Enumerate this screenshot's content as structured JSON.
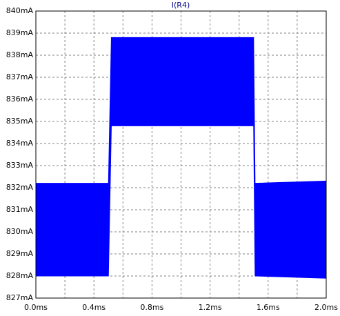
{
  "chart_data": {
    "type": "band",
    "title": "I(R4)",
    "x": [
      0,
      0.5,
      0.52,
      1.5,
      1.51,
      2.0
    ],
    "series": [
      {
        "color": "#0000ff",
        "high": [
          832.2,
          832.2,
          838.8,
          838.8,
          832.2,
          832.3
        ],
        "low": [
          828.0,
          828.0,
          834.8,
          834.8,
          828.0,
          827.9
        ]
      }
    ],
    "xlim": [
      0,
      2.0
    ],
    "xticks": [
      {
        "value": 0,
        "label": "0.0ms"
      },
      {
        "value": 0.4,
        "label": "0.4ms"
      },
      {
        "value": 0.8,
        "label": "0.8ms"
      },
      {
        "value": 1.2,
        "label": "1.2ms"
      },
      {
        "value": 1.6,
        "label": "1.6ms"
      },
      {
        "value": 2.0,
        "label": "2.0ms"
      }
    ],
    "xminor": [
      0.2,
      0.6,
      1.0,
      1.4,
      1.8
    ],
    "ylim": [
      827,
      840
    ],
    "yticks": [
      {
        "value": 827,
        "label": "827mA"
      },
      {
        "value": 828,
        "label": "828mA"
      },
      {
        "value": 829,
        "label": "829mA"
      },
      {
        "value": 830,
        "label": "830mA"
      },
      {
        "value": 831,
        "label": "831mA"
      },
      {
        "value": 832,
        "label": "832mA"
      },
      {
        "value": 833,
        "label": "833mA"
      },
      {
        "value": 834,
        "label": "834mA"
      },
      {
        "value": 835,
        "label": "835mA"
      },
      {
        "value": 836,
        "label": "836mA"
      },
      {
        "value": 837,
        "label": "837mA"
      },
      {
        "value": 838,
        "label": "838mA"
      },
      {
        "value": 839,
        "label": "839mA"
      },
      {
        "value": 840,
        "label": "840mA"
      }
    ],
    "grid": true
  }
}
